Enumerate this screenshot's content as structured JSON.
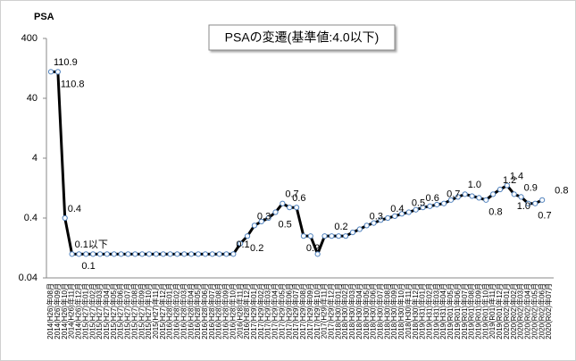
{
  "chart_data": {
    "type": "line",
    "title": "PSAの変遷(基準値:4.0以下)",
    "ylabel": "PSA",
    "log_scale": true,
    "ylim": [
      0.04,
      400
    ],
    "yticks": [
      0.04,
      0.4,
      4,
      40,
      400
    ],
    "categories": [
      "2014(H26)年08月",
      "2014(H26)年09月",
      "2014(H26)年10月",
      "2014(H26)年11月",
      "2014(H26)年12月",
      "2015(H27)年01月",
      "2015(H27)年02月",
      "2015(H27)年03月",
      "2015(H27)年04月",
      "2015(H27)年05月",
      "2015(H27)年06月",
      "2015(H27)年07月",
      "2015(H27)年08月",
      "2015(H27)年09月",
      "2015(H27)年10月",
      "2015(H27)年11月",
      "2015(H27)年12月",
      "2016(H28)年01月",
      "2016(H28)年02月",
      "2016(H28)年03月",
      "2016(H28)年04月",
      "2016(H28)年05月",
      "2016(H28)年06月",
      "2016(H28)年07月",
      "2016(H28)年08月",
      "2016(H28)年09月",
      "2016(H28)年10月",
      "2016(H28)年11月",
      "2016(H28)年12月",
      "2017(H29)年01月",
      "2017(H29)年02月",
      "2017(H29)年03月",
      "2017(H29)年04月",
      "2017(H29)年05月",
      "2017(H29)年06月",
      "2017(H29)年07月",
      "2017(H29)年08月",
      "2017(H29)年09月",
      "2017(H29)年10月",
      "2017(H29)年11月",
      "2017(H29)年12月",
      "2018(H30)年01月",
      "2018(H30)年02月",
      "2018(H30)年03月",
      "2018(H30)年04月",
      "2018(H30)年05月",
      "2018(H30)年06月",
      "2018(H30)年07月",
      "2018(H30)年08月",
      "2018(H30)年09月",
      "2018(H30)年10月",
      "2018(H30)年11月",
      "2018(H30)年12月",
      "2019(H31)年01月",
      "2019(H31)年02月",
      "2019(H31)年03月",
      "2019(H31)年04月",
      "2019(R01)年05月",
      "2019(R01)年06月",
      "2019(R01)年07月",
      "2019(R01)年08月",
      "2019(R01)年09月",
      "2019(R01)年10月",
      "2019(R01)年11月",
      "2019(R01)年12月",
      "2020(R02)年01月",
      "2020(R02)年02月",
      "2020(R02)年03月",
      "2020(R02)年04月",
      "2020(R02)年05月",
      "2020(R02)年06月",
      "2020(R02)年07月"
    ],
    "series": [
      {
        "name": "PSA",
        "color": "#000000",
        "marker_color": "#4f81bd",
        "values": [
          110.9,
          110.8,
          0.4,
          0.1,
          0.1,
          0.1,
          0.1,
          0.1,
          0.1,
          0.1,
          0.1,
          0.1,
          0.1,
          0.1,
          0.1,
          0.1,
          0.1,
          0.1,
          0.1,
          0.1,
          0.1,
          0.1,
          0.1,
          0.1,
          0.1,
          0.1,
          0.1,
          0.15,
          0.2,
          0.3,
          0.35,
          0.4,
          0.5,
          0.7,
          0.6,
          0.6,
          0.2,
          0.2,
          0.1,
          0.2,
          0.2,
          0.2,
          0.2,
          0.23,
          0.26,
          0.3,
          0.33,
          0.37,
          0.4,
          0.43,
          0.47,
          0.5,
          0.55,
          0.6,
          0.63,
          0.67,
          0.7,
          0.8,
          0.9,
          1.0,
          0.93,
          0.87,
          0.8,
          1.0,
          1.2,
          1.4,
          1.0,
          0.9,
          0.7,
          0.7,
          0.8,
          null
        ],
        "value_labels": [
          "110.9",
          "110.8",
          "0.4",
          "0.1以下",
          "0.1",
          null,
          null,
          null,
          null,
          null,
          null,
          null,
          null,
          null,
          null,
          null,
          null,
          null,
          null,
          null,
          null,
          null,
          null,
          null,
          null,
          null,
          "0.1",
          null,
          "0.2",
          "0.3",
          null,
          null,
          "0.5",
          "0.7",
          "0.6",
          null,
          "0.2",
          null,
          null,
          null,
          "0.2",
          null,
          null,
          null,
          null,
          "0.3",
          null,
          null,
          "0.4",
          null,
          null,
          "0.5",
          null,
          "0.6",
          null,
          null,
          "0.7",
          null,
          null,
          "1.0",
          null,
          null,
          "0.8",
          null,
          "1.2",
          "1.4",
          "1.0",
          "0.9",
          null,
          "0.7",
          "0.8",
          null
        ]
      }
    ]
  }
}
